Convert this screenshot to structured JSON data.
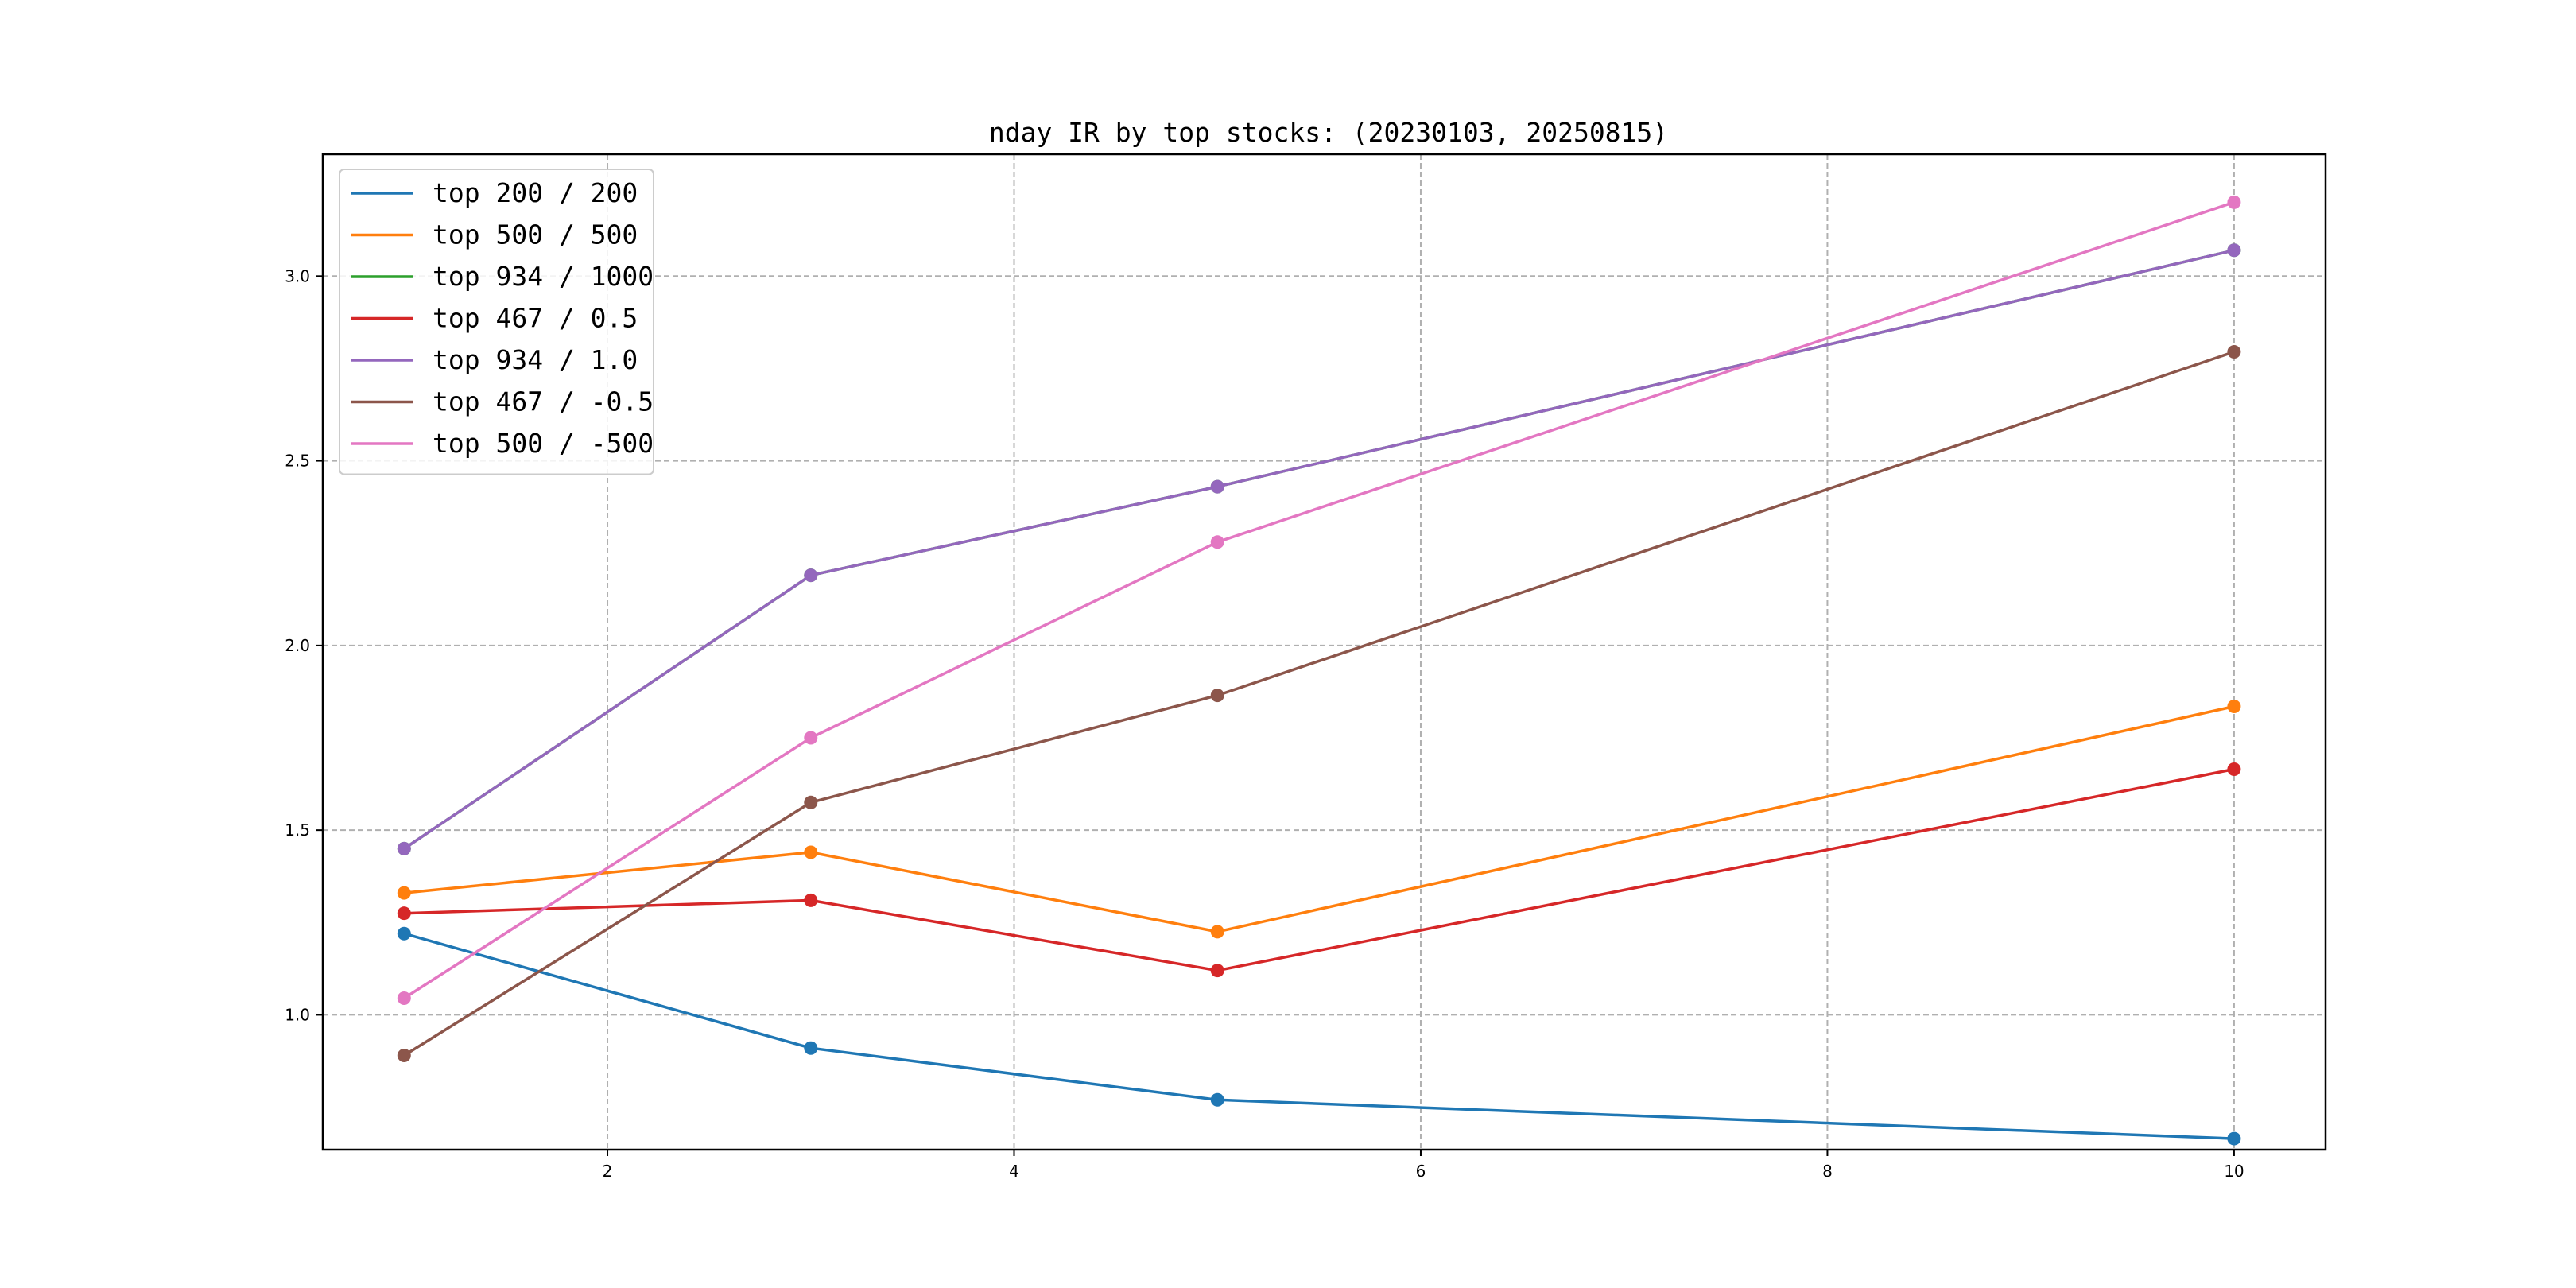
{
  "chart_data": {
    "type": "line",
    "title": "nday IR by top stocks: (20230103, 20250815)",
    "xlabel": "",
    "ylabel": "",
    "x": [
      1,
      3,
      5,
      10
    ],
    "xlim": [
      0.6,
      10.45
    ],
    "ylim": [
      0.635,
      3.33
    ],
    "xticks": [
      2,
      4,
      6,
      8,
      10
    ],
    "xtick_labels": [
      "2",
      "4",
      "6",
      "8",
      "10"
    ],
    "yticks": [
      1.0,
      1.5,
      2.0,
      2.5,
      3.0
    ],
    "ytick_labels": [
      "1.0",
      "1.5",
      "2.0",
      "2.5",
      "3.0"
    ],
    "grid": true,
    "legend_position": "top-left",
    "markers": true,
    "series": [
      {
        "name": "top 200 / 200",
        "color": "#1f77b4",
        "values": [
          1.22,
          0.91,
          0.77,
          0.665
        ]
      },
      {
        "name": "top 500 / 500",
        "color": "#ff7f0e",
        "values": [
          1.33,
          1.44,
          1.225,
          1.835
        ]
      },
      {
        "name": "top 934 / 1000",
        "color": "#2ca02c",
        "values": [
          1.45,
          2.19,
          2.43,
          3.07
        ]
      },
      {
        "name": "top 467 / 0.5",
        "color": "#d62728",
        "values": [
          1.275,
          1.31,
          1.12,
          1.665
        ]
      },
      {
        "name": "top 934 / 1.0",
        "color": "#9467bd",
        "values": [
          1.45,
          2.19,
          2.43,
          3.07
        ]
      },
      {
        "name": "top 467 / -0.5",
        "color": "#8c564b",
        "values": [
          0.89,
          1.575,
          1.865,
          2.795
        ]
      },
      {
        "name": "top 500 / -500",
        "color": "#e377c2",
        "values": [
          1.045,
          1.75,
          2.28,
          3.2
        ]
      }
    ]
  }
}
